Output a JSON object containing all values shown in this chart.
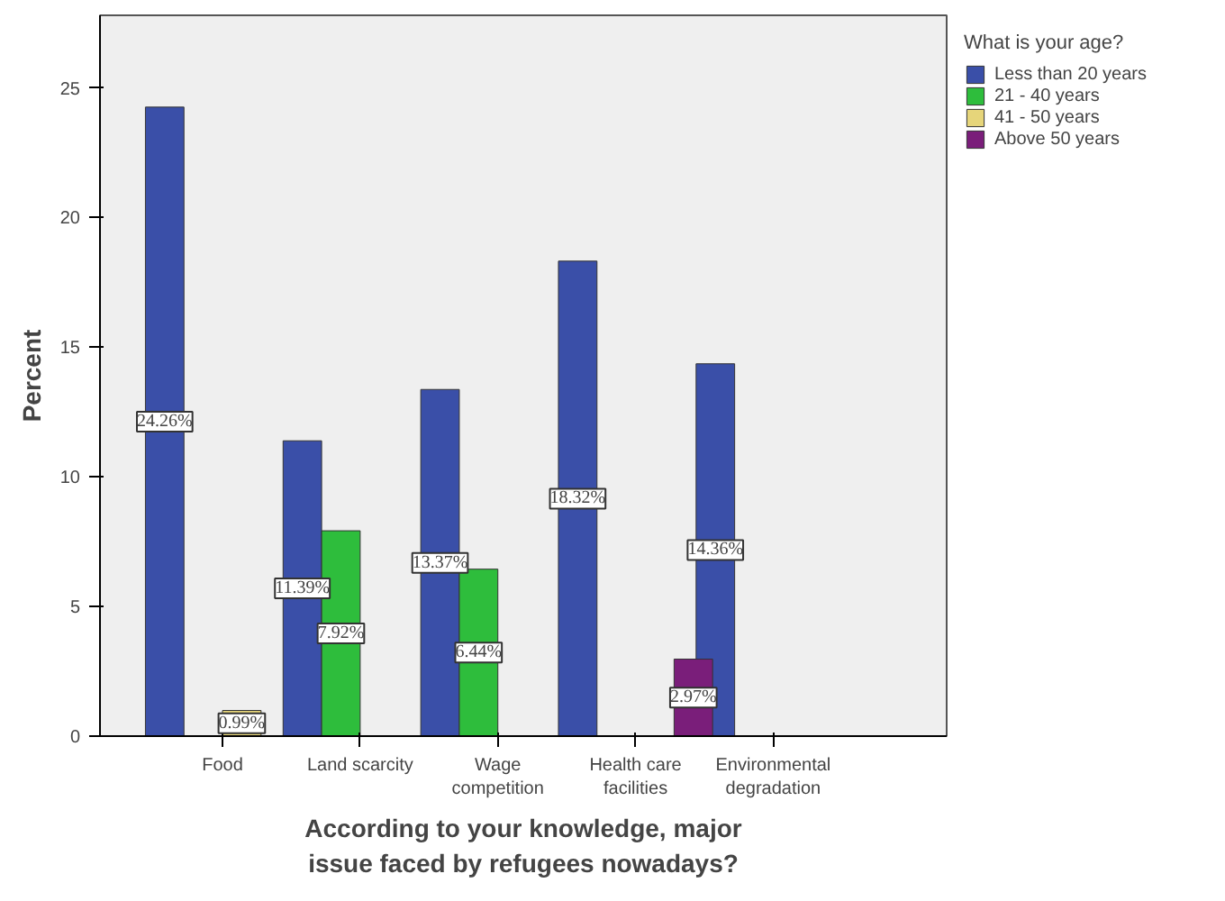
{
  "chart_data": {
    "type": "bar",
    "xlabel": "According to your knowledge, major issue faced by refugees nowadays?",
    "ylabel": "Percent",
    "legend_title": "What is your age?",
    "categories": [
      "Food",
      "Land scarcity",
      "Wage competition",
      "Health care facilities",
      "Environmental degradation"
    ],
    "series": [
      {
        "name": "Less than 20 years",
        "color": "#3a4fa8",
        "values": [
          24.26,
          11.39,
          13.37,
          18.32,
          14.36
        ],
        "value_labels": [
          "24.26%",
          "11.39%",
          "13.37%",
          "18.32%",
          "14.36%"
        ]
      },
      {
        "name": "21 - 40 years",
        "color": "#2ebd3c",
        "values": [
          null,
          7.92,
          6.44,
          null,
          null
        ],
        "value_labels": [
          null,
          "7.92%",
          "6.44%",
          null,
          null
        ]
      },
      {
        "name": "41 - 50 years",
        "color": "#e6d57a",
        "values": [
          0.99,
          null,
          null,
          null,
          null
        ],
        "value_labels": [
          "0.99%",
          null,
          null,
          null,
          null
        ]
      },
      {
        "name": "Above 50 years",
        "color": "#7a1e7a",
        "values": [
          null,
          null,
          null,
          2.97,
          null
        ],
        "value_labels": [
          null,
          null,
          null,
          "2.97%",
          null
        ]
      }
    ],
    "ylim": [
      0,
      27.8
    ],
    "yticks": [
      0,
      5,
      10,
      15,
      20,
      25
    ],
    "grid": false,
    "legend": "right"
  }
}
